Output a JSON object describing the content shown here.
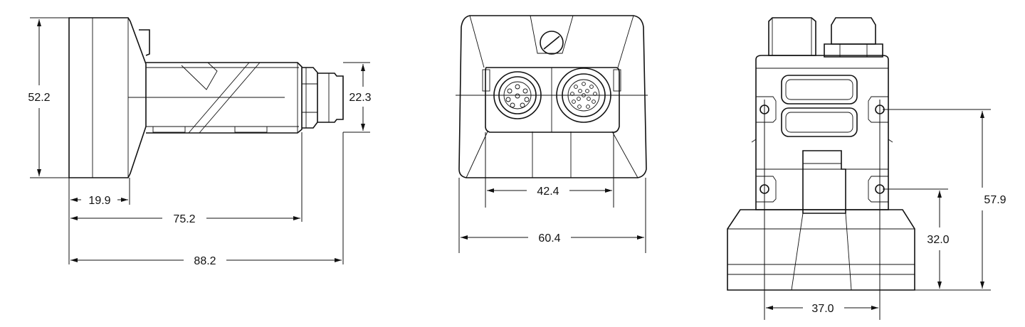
{
  "views": {
    "side": {
      "dimensions": {
        "height_total": "52.2",
        "connector_height": "22.3",
        "head_depth": "19.9",
        "to_connector": "75.2",
        "overall_length": "88.2"
      }
    },
    "front": {
      "dimensions": {
        "connector_spacing": "42.4",
        "overall_width": "60.4"
      }
    },
    "rear": {
      "dimensions": {
        "hole_vertical_spacing": "57.9",
        "lower_hole_height": "32.0",
        "hole_horizontal_spacing": "37.0"
      }
    }
  }
}
